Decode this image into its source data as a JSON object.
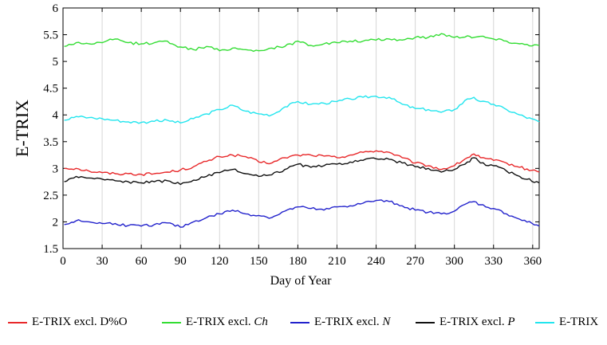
{
  "chart_data": {
    "type": "line",
    "xlabel": "Day of Year",
    "ylabel": "E-TRIX",
    "xlim": [
      0,
      365
    ],
    "ylim": [
      1.5,
      6
    ],
    "x_ticks": [
      0,
      30,
      60,
      90,
      120,
      150,
      180,
      210,
      240,
      270,
      300,
      330,
      360
    ],
    "y_ticks": [
      1.5,
      2,
      2.5,
      3,
      3.5,
      4,
      4.5,
      5,
      5.5,
      6
    ],
    "y_tick_labels": [
      "1.5",
      "2",
      "2.5",
      "3",
      "3.5",
      "4",
      "4.5",
      "5",
      "5.5",
      "6"
    ],
    "vertical_grid": true,
    "horizontal_grid": false,
    "legend_position": "bottom",
    "x": [
      1,
      10,
      20,
      30,
      40,
      50,
      60,
      70,
      80,
      90,
      100,
      110,
      120,
      130,
      140,
      150,
      160,
      170,
      180,
      190,
      200,
      210,
      220,
      230,
      240,
      250,
      260,
      270,
      280,
      290,
      300,
      310,
      315,
      320,
      330,
      340,
      350,
      365
    ],
    "series": [
      {
        "name": "E-TRIX excl. D%O",
        "legend_label": "E-TRIX excl. D%O",
        "legend_italic": "",
        "color": "#e8282a",
        "values": [
          3.0,
          3.0,
          2.95,
          2.92,
          2.9,
          2.9,
          2.89,
          2.9,
          2.93,
          2.97,
          3.03,
          3.13,
          3.22,
          3.25,
          3.22,
          3.12,
          3.1,
          3.2,
          3.25,
          3.25,
          3.23,
          3.2,
          3.25,
          3.3,
          3.33,
          3.3,
          3.2,
          3.1,
          3.05,
          2.98,
          3.05,
          3.2,
          3.27,
          3.2,
          3.15,
          3.1,
          3.02,
          2.93
        ]
      },
      {
        "name": "E-TRIX excl. Ch",
        "legend_label": "E-TRIX excl. ",
        "legend_italic": "Ch",
        "color": "#33dd33",
        "values": [
          5.28,
          5.35,
          5.33,
          5.35,
          5.42,
          5.35,
          5.33,
          5.35,
          5.38,
          5.27,
          5.22,
          5.28,
          5.2,
          5.25,
          5.22,
          5.2,
          5.25,
          5.28,
          5.38,
          5.3,
          5.33,
          5.35,
          5.38,
          5.38,
          5.4,
          5.42,
          5.4,
          5.45,
          5.45,
          5.52,
          5.45,
          5.48,
          5.45,
          5.47,
          5.42,
          5.38,
          5.33,
          5.3
        ]
      },
      {
        "name": "E-TRIX excl. N",
        "legend_label": "E-TRIX excl. ",
        "legend_italic": "N",
        "color": "#2222cc",
        "values": [
          1.95,
          2.02,
          2.0,
          1.97,
          1.97,
          1.93,
          1.92,
          1.95,
          1.98,
          1.9,
          2.0,
          2.08,
          2.15,
          2.22,
          2.15,
          2.12,
          2.08,
          2.2,
          2.28,
          2.25,
          2.22,
          2.28,
          2.3,
          2.35,
          2.4,
          2.38,
          2.3,
          2.22,
          2.18,
          2.15,
          2.2,
          2.35,
          2.38,
          2.32,
          2.25,
          2.15,
          2.05,
          1.92
        ]
      },
      {
        "name": "E-TRIX excl. P",
        "legend_label": "E-TRIX excl. ",
        "legend_italic": "P",
        "color": "#111111",
        "values": [
          2.75,
          2.85,
          2.82,
          2.8,
          2.77,
          2.75,
          2.73,
          2.75,
          2.77,
          2.7,
          2.78,
          2.85,
          2.92,
          2.98,
          2.9,
          2.85,
          2.88,
          2.98,
          3.08,
          3.02,
          3.05,
          3.08,
          3.12,
          3.15,
          3.18,
          3.17,
          3.1,
          3.03,
          3.0,
          2.93,
          2.98,
          3.12,
          3.2,
          3.1,
          3.05,
          2.95,
          2.85,
          2.73
        ]
      },
      {
        "name": "E-TRIX",
        "legend_label": "E-TRIX",
        "legend_italic": "",
        "color": "#22e5ee",
        "values": [
          3.9,
          3.97,
          3.95,
          3.93,
          3.9,
          3.87,
          3.86,
          3.88,
          3.9,
          3.85,
          3.93,
          4.02,
          4.1,
          4.18,
          4.07,
          4.02,
          4.0,
          4.15,
          4.25,
          4.2,
          4.22,
          4.25,
          4.3,
          4.33,
          4.35,
          4.33,
          4.2,
          4.12,
          4.1,
          4.05,
          4.1,
          4.3,
          4.33,
          4.25,
          4.2,
          4.1,
          4.0,
          3.87
        ]
      }
    ]
  }
}
